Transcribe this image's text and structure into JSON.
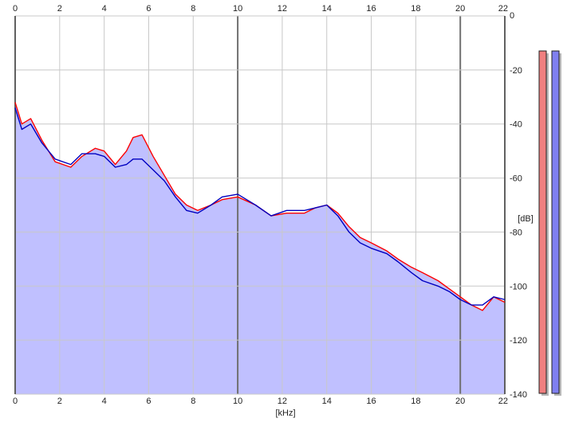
{
  "colors": {
    "background": "#ffffff",
    "plot_fill": "#c0c0ff",
    "grid_minor": "#c8c8c8",
    "grid_major": "#707070",
    "left_channel": "#ff0000",
    "right_channel": "#0000c0",
    "meter_left": "#f08080",
    "meter_right": "#8080f0"
  },
  "chart_data": {
    "type": "line",
    "title": "",
    "xlabel": "[kHz]",
    "ylabel": "[dB]",
    "xlim": [
      0,
      22
    ],
    "ylim": [
      -140,
      0
    ],
    "x_ticks": [
      "0",
      "2",
      "4",
      "6",
      "8",
      "10",
      "12",
      "14",
      "16",
      "18",
      "20",
      "22"
    ],
    "y_ticks": [
      "0",
      "-20",
      "-40",
      "-60",
      "-80",
      "-100",
      "-120",
      "-140"
    ],
    "grid": true,
    "area_fill": true,
    "series": [
      {
        "channel": "left",
        "x": [
          0,
          0.3,
          0.7,
          1.2,
          1.8,
          2.5,
          3.0,
          3.6,
          4.0,
          4.5,
          5.0,
          5.3,
          5.7,
          6.2,
          6.7,
          7.2,
          7.7,
          8.2,
          8.8,
          9.3,
          10.0,
          10.8,
          11.5,
          12.2,
          13.0,
          13.5,
          14.0,
          14.5,
          15.0,
          15.5,
          16.0,
          16.7,
          17.2,
          17.8,
          18.3,
          19.0,
          19.5,
          20.0,
          20.5,
          21.0,
          21.5,
          22.0
        ],
        "y": [
          -32,
          -40,
          -38,
          -46,
          -54,
          -56,
          -52,
          -49,
          -50,
          -55,
          -50,
          -45,
          -44,
          -52,
          -59,
          -66,
          -70,
          -72,
          -70,
          -68,
          -67,
          -70,
          -74,
          -73,
          -73,
          -71,
          -70,
          -73,
          -78,
          -82,
          -84,
          -87,
          -90,
          -93,
          -95,
          -98,
          -101,
          -104,
          -107,
          -109,
          -104,
          -106
        ]
      },
      {
        "channel": "right",
        "x": [
          0,
          0.3,
          0.7,
          1.2,
          1.8,
          2.5,
          3.0,
          3.6,
          4.0,
          4.5,
          5.0,
          5.3,
          5.7,
          6.2,
          6.7,
          7.2,
          7.7,
          8.2,
          8.8,
          9.3,
          10.0,
          10.8,
          11.5,
          12.2,
          13.0,
          13.5,
          14.0,
          14.5,
          15.0,
          15.5,
          16.0,
          16.7,
          17.2,
          17.8,
          18.3,
          19.0,
          19.5,
          20.0,
          20.5,
          21.0,
          21.5,
          22.0
        ],
        "y": [
          -34,
          -42,
          -40,
          -47,
          -53,
          -55,
          -51,
          -51,
          -52,
          -56,
          -55,
          -53,
          -53,
          -57,
          -61,
          -67,
          -72,
          -73,
          -70,
          -67,
          -66,
          -70,
          -74,
          -72,
          -72,
          -71,
          -70,
          -74,
          -80,
          -84,
          -86,
          -88,
          -91,
          -95,
          -98,
          -100,
          -102,
          -105,
          -107,
          -107,
          -104,
          -105
        ]
      }
    ],
    "meters": [
      {
        "channel": "left",
        "level_db": 0
      },
      {
        "channel": "right",
        "level_db": 0
      }
    ]
  }
}
